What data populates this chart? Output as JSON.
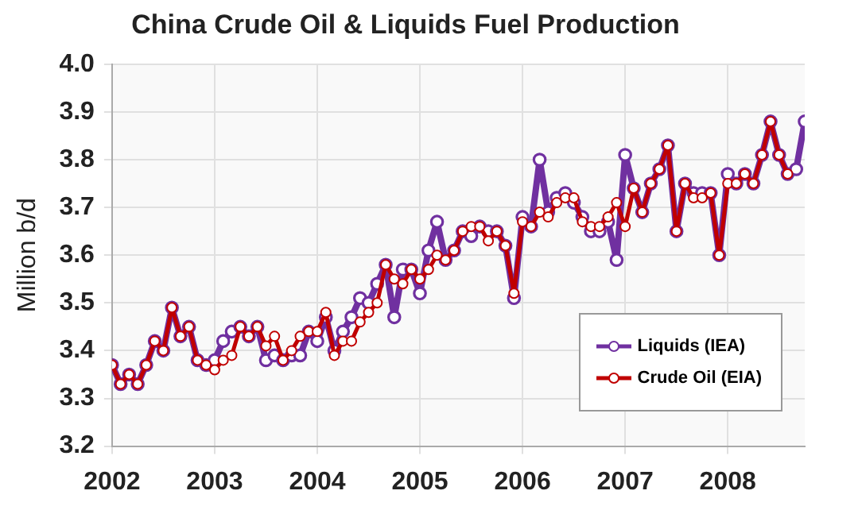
{
  "chart_data": {
    "type": "line",
    "title": "China Crude Oil & Liquids Fuel Production",
    "ylabel": "Million b/d",
    "x": [
      "2002-01",
      "2002-02",
      "2002-03",
      "2002-04",
      "2002-05",
      "2002-06",
      "2002-07",
      "2002-08",
      "2002-09",
      "2002-10",
      "2002-11",
      "2002-12",
      "2003-01",
      "2003-02",
      "2003-03",
      "2003-04",
      "2003-05",
      "2003-06",
      "2003-07",
      "2003-08",
      "2003-09",
      "2003-10",
      "2003-11",
      "2003-12",
      "2004-01",
      "2004-02",
      "2004-03",
      "2004-04",
      "2004-05",
      "2004-06",
      "2004-07",
      "2004-08",
      "2004-09",
      "2004-10",
      "2004-11",
      "2004-12",
      "2005-01",
      "2005-02",
      "2005-03",
      "2005-04",
      "2005-05",
      "2005-06",
      "2005-07",
      "2005-08",
      "2005-09",
      "2005-10",
      "2005-11",
      "2005-12",
      "2006-01",
      "2006-02",
      "2006-03",
      "2006-04",
      "2006-05",
      "2006-06",
      "2006-07",
      "2006-08",
      "2006-09",
      "2006-10",
      "2006-11",
      "2006-12",
      "2007-01",
      "2007-02",
      "2007-03",
      "2007-04",
      "2007-05",
      "2007-06",
      "2007-07",
      "2007-08",
      "2007-09",
      "2007-10",
      "2007-11",
      "2007-12",
      "2008-01",
      "2008-02",
      "2008-03",
      "2008-04",
      "2008-05",
      "2008-06",
      "2008-07",
      "2008-08",
      "2008-09",
      "2008-10"
    ],
    "series": [
      {
        "name": "Liquids (IEA)",
        "color": "#7030a0",
        "values": [
          3.37,
          3.33,
          3.35,
          3.33,
          3.37,
          3.42,
          3.4,
          3.49,
          3.43,
          3.45,
          3.38,
          3.37,
          3.38,
          3.42,
          3.44,
          3.45,
          3.43,
          3.45,
          3.38,
          3.39,
          3.38,
          3.39,
          3.39,
          3.44,
          3.42,
          3.47,
          3.4,
          3.44,
          3.47,
          3.51,
          3.5,
          3.54,
          3.58,
          3.47,
          3.57,
          3.57,
          3.52,
          3.61,
          3.67,
          3.59,
          3.61,
          3.65,
          3.64,
          3.66,
          3.65,
          3.65,
          3.62,
          3.51,
          3.68,
          3.66,
          3.8,
          3.69,
          3.72,
          3.73,
          3.71,
          3.68,
          3.65,
          3.65,
          3.67,
          3.59,
          3.81,
          3.74,
          3.69,
          3.75,
          3.78,
          3.83,
          3.65,
          3.75,
          3.73,
          3.73,
          3.73,
          3.6,
          3.77,
          3.75,
          3.77,
          3.75,
          3.81,
          3.88,
          3.81,
          3.77,
          3.78,
          3.88
        ]
      },
      {
        "name": "Crude Oil (EIA)",
        "color": "#c00000",
        "values": [
          3.37,
          3.33,
          3.35,
          3.33,
          3.37,
          3.42,
          3.4,
          3.49,
          3.43,
          3.45,
          3.38,
          3.37,
          3.36,
          3.38,
          3.39,
          3.45,
          3.43,
          3.45,
          3.41,
          3.43,
          3.38,
          3.4,
          3.43,
          3.44,
          3.44,
          3.48,
          3.39,
          3.42,
          3.42,
          3.46,
          3.48,
          3.5,
          3.58,
          3.55,
          3.54,
          3.57,
          3.55,
          3.57,
          3.6,
          3.59,
          3.61,
          3.65,
          3.66,
          3.66,
          3.63,
          3.65,
          3.62,
          3.52,
          3.67,
          3.66,
          3.69,
          3.68,
          3.71,
          3.72,
          3.72,
          3.67,
          3.66,
          3.66,
          3.68,
          3.71,
          3.66,
          3.74,
          3.69,
          3.75,
          3.78,
          3.83,
          3.65,
          3.75,
          3.72,
          3.72,
          3.73,
          3.6,
          3.75,
          3.75,
          3.77,
          3.75,
          3.81,
          3.88,
          3.81,
          3.77,
          null,
          null
        ]
      }
    ],
    "xlim": [
      "2002-01",
      "2008-10"
    ],
    "xticks": [
      "2002",
      "2003",
      "2004",
      "2005",
      "2006",
      "2007",
      "2008"
    ],
    "ylim": [
      3.2,
      4.0
    ],
    "yticks": [
      3.2,
      3.3,
      3.4,
      3.5,
      3.6,
      3.7,
      3.8,
      3.9,
      {
        "value": 4,
        "label": "4.0"
      }
    ],
    "grid": true,
    "legend": "bottom right",
    "marker": "circle",
    "line_style": "solid"
  }
}
